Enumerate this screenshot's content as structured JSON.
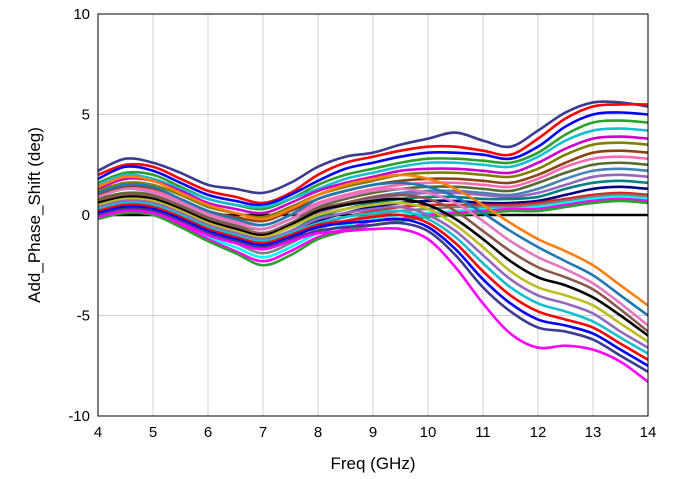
{
  "chart_data": {
    "type": "line",
    "xlabel": "Freq (GHz)",
    "ylabel": "Add_Phase_Shift (deg)",
    "xlim": [
      4,
      14
    ],
    "ylim": [
      -10,
      10
    ],
    "xticks": [
      4,
      5,
      6,
      7,
      8,
      9,
      10,
      11,
      12,
      13,
      14
    ],
    "yticks": [
      -10,
      -5,
      0,
      5,
      10
    ],
    "xtick_labels": [
      "4",
      "5",
      "6",
      "7",
      "8",
      "9",
      "10",
      "11",
      "12",
      "13",
      "14"
    ],
    "ytick_labels": [
      "-10",
      "-5",
      "0",
      "5",
      "10"
    ],
    "grid": true,
    "legend": "none",
    "x": [
      4,
      4.5,
      5,
      5.5,
      6,
      6.5,
      7,
      7.5,
      8,
      8.5,
      9,
      9.5,
      10,
      10.5,
      11,
      11.5,
      12,
      12.5,
      13,
      13.5,
      14
    ],
    "series": [
      {
        "color": "#000000",
        "values": [
          0,
          0,
          0,
          0,
          0,
          0,
          0,
          0,
          0,
          0,
          0,
          0,
          0,
          0,
          0,
          0,
          0,
          0,
          0,
          0,
          0
        ]
      },
      {
        "color": "#3b3b8f",
        "values": [
          2.2,
          2.8,
          2.6,
          2.1,
          1.5,
          1.3,
          1.1,
          1.6,
          2.4,
          2.9,
          3.1,
          3.5,
          3.8,
          4.1,
          3.7,
          3.4,
          4.2,
          5.1,
          5.6,
          5.6,
          5.4
        ]
      },
      {
        "color": "#ff0000",
        "values": [
          2.0,
          2.5,
          2.4,
          1.8,
          1.2,
          0.9,
          0.6,
          1.1,
          2.0,
          2.6,
          2.9,
          3.2,
          3.4,
          3.4,
          3.2,
          3.0,
          3.8,
          4.8,
          5.4,
          5.5,
          5.5
        ]
      },
      {
        "color": "#0000ff",
        "values": [
          1.8,
          2.4,
          2.2,
          1.6,
          1.0,
          0.7,
          0.5,
          1.0,
          1.7,
          2.3,
          2.6,
          2.9,
          3.1,
          3.1,
          3.0,
          2.8,
          3.4,
          4.4,
          5.0,
          5.1,
          5.0
        ]
      },
      {
        "color": "#2ca02c",
        "values": [
          1.6,
          2.1,
          2.0,
          1.4,
          0.8,
          0.5,
          0.3,
          0.8,
          1.5,
          2.0,
          2.3,
          2.6,
          2.8,
          2.8,
          2.7,
          2.6,
          3.1,
          4.0,
          4.6,
          4.7,
          4.6
        ]
      },
      {
        "color": "#17becf",
        "values": [
          1.5,
          2.0,
          1.8,
          1.3,
          0.8,
          0.5,
          0.4,
          0.8,
          1.3,
          1.8,
          2.1,
          2.4,
          2.6,
          2.6,
          2.5,
          2.4,
          2.9,
          3.7,
          4.2,
          4.3,
          4.2
        ]
      },
      {
        "color": "#cc00cc",
        "values": [
          1.3,
          1.8,
          1.7,
          1.2,
          0.6,
          0.3,
          0.1,
          0.6,
          1.2,
          1.6,
          1.9,
          2.2,
          2.3,
          2.3,
          2.2,
          2.1,
          2.6,
          3.3,
          3.8,
          3.9,
          3.8
        ]
      },
      {
        "color": "#808000",
        "values": [
          1.2,
          1.6,
          1.5,
          1.0,
          0.4,
          0.1,
          -0.1,
          0.4,
          1.0,
          1.4,
          1.7,
          2.0,
          2.1,
          2.1,
          2.0,
          1.9,
          2.3,
          3.0,
          3.5,
          3.6,
          3.5
        ]
      },
      {
        "color": "#8b4513",
        "values": [
          1.0,
          1.4,
          1.3,
          0.8,
          0.2,
          -0.1,
          -0.3,
          0.2,
          0.8,
          1.2,
          1.5,
          1.7,
          1.8,
          1.8,
          1.7,
          1.6,
          2.0,
          2.6,
          3.1,
          3.2,
          3.1
        ]
      },
      {
        "color": "#ff69b4",
        "values": [
          0.9,
          1.3,
          1.2,
          0.7,
          0.1,
          -0.3,
          -0.5,
          0.0,
          0.6,
          1.0,
          1.3,
          1.5,
          1.6,
          1.6,
          1.5,
          1.4,
          1.8,
          2.4,
          2.8,
          2.9,
          2.8
        ]
      },
      {
        "color": "#556b2f",
        "values": [
          0.8,
          1.1,
          1.0,
          0.5,
          -0.1,
          -0.5,
          -0.7,
          -0.2,
          0.4,
          0.8,
          1.1,
          1.3,
          1.4,
          1.4,
          1.3,
          1.2,
          1.6,
          2.1,
          2.5,
          2.6,
          2.5
        ]
      },
      {
        "color": "#4682b4",
        "values": [
          0.6,
          1.0,
          0.9,
          0.4,
          -0.2,
          -0.6,
          -0.9,
          -0.4,
          0.3,
          0.6,
          0.9,
          1.1,
          1.2,
          1.2,
          1.1,
          1.0,
          1.3,
          1.8,
          2.2,
          2.3,
          2.2
        ]
      },
      {
        "color": "#9467bd",
        "values": [
          0.5,
          0.8,
          0.7,
          0.2,
          -0.4,
          -0.8,
          -1.1,
          -0.6,
          0.1,
          0.5,
          0.8,
          1.0,
          1.1,
          1.1,
          1.0,
          0.9,
          1.1,
          1.5,
          1.9,
          2.0,
          1.9
        ]
      },
      {
        "color": "#008080",
        "values": [
          0.4,
          0.7,
          0.6,
          0.1,
          -0.5,
          -1.0,
          -1.3,
          -0.8,
          -0.1,
          0.3,
          0.6,
          0.8,
          0.9,
          0.9,
          0.8,
          0.8,
          0.9,
          1.3,
          1.6,
          1.7,
          1.6
        ]
      },
      {
        "color": "#000080",
        "values": [
          0.3,
          0.6,
          0.5,
          0.0,
          -0.6,
          -1.1,
          -1.5,
          -1.0,
          -0.3,
          0.1,
          0.4,
          0.6,
          0.7,
          0.7,
          0.6,
          0.6,
          0.7,
          1.0,
          1.3,
          1.4,
          1.3
        ]
      },
      {
        "color": "#d62728",
        "values": [
          0.2,
          0.5,
          0.4,
          -0.2,
          -0.8,
          -1.3,
          -1.7,
          -1.2,
          -0.5,
          -0.1,
          0.2,
          0.4,
          0.5,
          0.5,
          0.5,
          0.5,
          0.6,
          0.8,
          1.0,
          1.1,
          1.0
        ]
      },
      {
        "color": "#7f7f7f",
        "values": [
          0.1,
          0.4,
          0.3,
          -0.3,
          -0.9,
          -1.4,
          -1.9,
          -1.4,
          -0.7,
          -0.3,
          0.0,
          0.2,
          0.3,
          0.4,
          0.4,
          0.4,
          0.5,
          0.7,
          0.9,
          1.0,
          0.9
        ]
      },
      {
        "color": "#00ffff",
        "values": [
          0.0,
          0.3,
          0.2,
          -0.4,
          -1.1,
          -1.6,
          -2.1,
          -1.6,
          -0.9,
          -0.5,
          -0.2,
          0.0,
          0.1,
          0.2,
          0.3,
          0.3,
          0.4,
          0.6,
          0.8,
          0.9,
          0.8
        ]
      },
      {
        "color": "#ff00ff",
        "values": [
          -0.1,
          0.2,
          0.1,
          -0.5,
          -1.2,
          -1.8,
          -2.3,
          -1.8,
          -1.1,
          -0.7,
          -0.3,
          -0.2,
          0.0,
          0.1,
          0.2,
          0.3,
          0.3,
          0.5,
          0.7,
          0.8,
          0.7
        ]
      },
      {
        "color": "#2ca02c",
        "values": [
          -0.2,
          0.1,
          0.0,
          -0.6,
          -1.3,
          -1.9,
          -2.5,
          -2.0,
          -1.2,
          -0.8,
          -0.5,
          -0.3,
          -0.1,
          0.0,
          0.1,
          0.2,
          0.2,
          0.4,
          0.6,
          0.7,
          0.6
        ]
      },
      {
        "color": "#ff7f0e",
        "values": [
          1.4,
          1.9,
          1.7,
          1.1,
          0.5,
          0.1,
          -0.2,
          0.3,
          1.0,
          1.5,
          1.8,
          2.0,
          1.8,
          1.3,
          0.5,
          -0.4,
          -1.2,
          -1.8,
          -2.5,
          -3.5,
          -4.5
        ]
      },
      {
        "color": "#1f77b4",
        "values": [
          1.1,
          1.5,
          1.4,
          0.8,
          0.2,
          -0.2,
          -0.5,
          0.0,
          0.8,
          1.2,
          1.5,
          1.6,
          1.4,
          0.9,
          0.1,
          -0.8,
          -1.6,
          -2.3,
          -3.0,
          -4.0,
          -5.0
        ]
      },
      {
        "color": "#e377c2",
        "values": [
          0.9,
          1.3,
          1.1,
          0.6,
          0.0,
          -0.4,
          -0.7,
          -0.2,
          0.5,
          0.9,
          1.2,
          1.3,
          1.1,
          0.6,
          -0.3,
          -1.3,
          -2.1,
          -2.7,
          -3.4,
          -4.4,
          -5.5
        ]
      },
      {
        "color": "#8c564b",
        "values": [
          0.7,
          1.0,
          0.9,
          0.4,
          -0.2,
          -0.6,
          -0.9,
          -0.4,
          0.3,
          0.6,
          0.9,
          1.0,
          0.8,
          0.2,
          -0.8,
          -1.8,
          -2.6,
          -3.1,
          -3.7,
          -4.7,
          -5.8
        ]
      },
      {
        "color": "#000000",
        "values": [
          0.6,
          0.9,
          0.8,
          0.3,
          -0.3,
          -0.7,
          -1.0,
          -0.5,
          0.2,
          0.5,
          0.7,
          0.8,
          0.5,
          -0.2,
          -1.2,
          -2.3,
          -3.1,
          -3.5,
          -4.1,
          -5.0,
          -6.0
        ]
      },
      {
        "color": "#bcbd22",
        "values": [
          0.5,
          0.8,
          0.7,
          0.2,
          -0.4,
          -0.8,
          -1.1,
          -0.6,
          0.0,
          0.3,
          0.5,
          0.6,
          0.3,
          -0.5,
          -1.6,
          -2.8,
          -3.6,
          -4.0,
          -4.5,
          -5.4,
          -6.3
        ]
      },
      {
        "color": "#9467bd",
        "values": [
          0.4,
          0.7,
          0.6,
          0.1,
          -0.5,
          -0.9,
          -1.2,
          -0.8,
          -0.2,
          0.1,
          0.3,
          0.4,
          0.0,
          -0.8,
          -2.0,
          -3.2,
          -4.0,
          -4.4,
          -4.9,
          -5.8,
          -6.6
        ]
      },
      {
        "color": "#17becf",
        "values": [
          0.3,
          0.6,
          0.5,
          0.0,
          -0.6,
          -1.0,
          -1.3,
          -0.9,
          -0.4,
          -0.1,
          0.1,
          0.2,
          -0.2,
          -1.1,
          -2.4,
          -3.6,
          -4.4,
          -4.8,
          -5.3,
          -6.1,
          -6.9
        ]
      },
      {
        "color": "#ff0000",
        "values": [
          0.2,
          0.5,
          0.4,
          -0.1,
          -0.7,
          -1.1,
          -1.4,
          -1.0,
          -0.5,
          -0.3,
          -0.1,
          0.0,
          -0.4,
          -1.4,
          -2.8,
          -4.0,
          -4.8,
          -5.2,
          -5.6,
          -6.4,
          -7.2
        ]
      },
      {
        "color": "#0000ff",
        "values": [
          0.1,
          0.4,
          0.3,
          -0.2,
          -0.8,
          -1.2,
          -1.5,
          -1.1,
          -0.6,
          -0.4,
          -0.3,
          -0.2,
          -0.6,
          -1.7,
          -3.2,
          -4.4,
          -5.2,
          -5.5,
          -5.9,
          -6.7,
          -7.5
        ]
      },
      {
        "color": "#3b3b8f",
        "values": [
          0.0,
          0.3,
          0.2,
          -0.3,
          -0.9,
          -1.3,
          -1.6,
          -1.2,
          -0.8,
          -0.6,
          -0.5,
          -0.4,
          -0.8,
          -2.0,
          -3.6,
          -4.8,
          -5.6,
          -5.8,
          -6.2,
          -7.0,
          -7.8
        ]
      },
      {
        "color": "#ff00ff",
        "values": [
          -0.1,
          0.2,
          0.1,
          -0.4,
          -1.0,
          -1.4,
          -1.7,
          -1.3,
          -0.9,
          -0.8,
          -0.7,
          -0.7,
          -1.2,
          -2.6,
          -4.4,
          -5.9,
          -6.6,
          -6.5,
          -6.7,
          -7.3,
          -8.3
        ]
      }
    ]
  }
}
